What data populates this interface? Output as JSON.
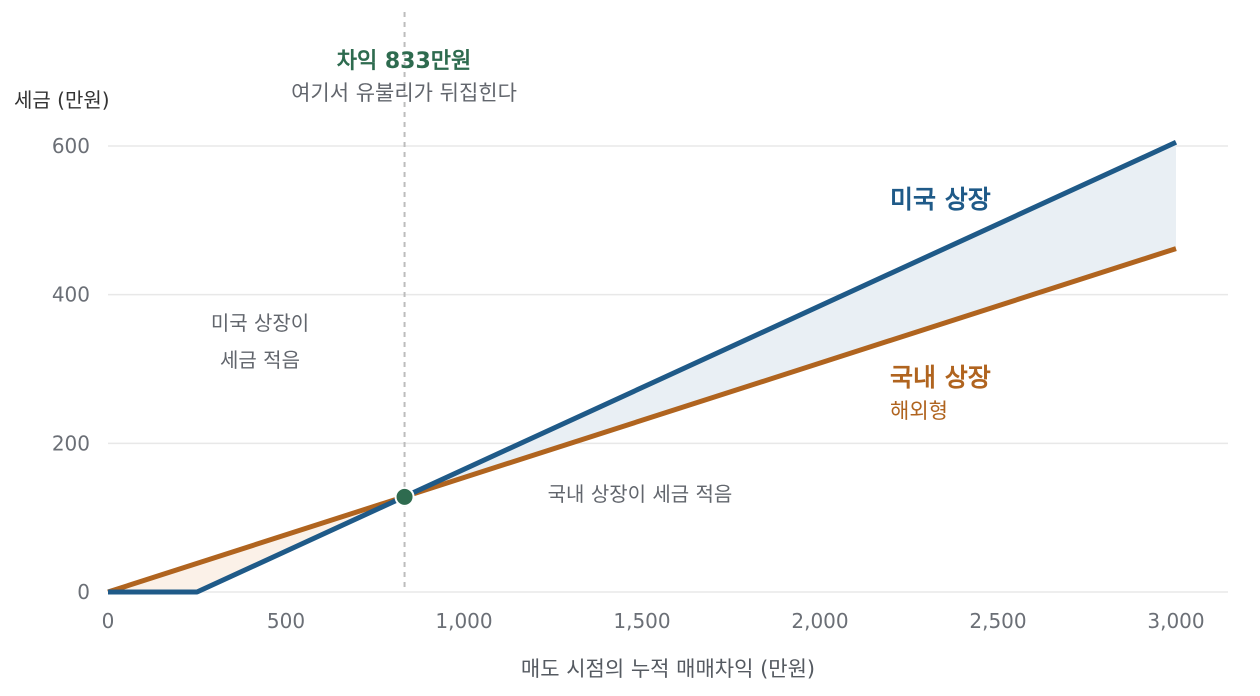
{
  "chart_data": {
    "type": "line",
    "x_title": "매도 시점의 누적 매매차익 (만원)",
    "y_title": "세금 (만원)",
    "xlim": [
      0,
      3000
    ],
    "ylim": [
      0,
      600
    ],
    "x_ticks": [
      {
        "value": 0,
        "label": "0"
      },
      {
        "value": 500,
        "label": "500"
      },
      {
        "value": 1000,
        "label": "1,000"
      },
      {
        "value": 1500,
        "label": "1,500"
      },
      {
        "value": 2000,
        "label": "2,000"
      },
      {
        "value": 2500,
        "label": "2,500"
      },
      {
        "value": 3000,
        "label": "3,000"
      }
    ],
    "y_ticks": [
      {
        "value": 0,
        "label": "0"
      },
      {
        "value": 200,
        "label": "200"
      },
      {
        "value": 400,
        "label": "400"
      },
      {
        "value": 600,
        "label": "600"
      }
    ],
    "grid": true,
    "series": [
      {
        "name": "미국 상장",
        "color": "#1f5a88",
        "points": [
          [
            0,
            0
          ],
          [
            250,
            0
          ],
          [
            3000,
            605
          ]
        ]
      },
      {
        "name": "국내 상장",
        "subname": "해외형",
        "color": "#b0641f",
        "points": [
          [
            0,
            0
          ],
          [
            3000,
            462
          ]
        ]
      }
    ],
    "crossover": {
      "x": 833,
      "y": 128,
      "title": "차익 833만원",
      "subtitle": "여기서 유불리가 뒤집힌다",
      "marker_color": "#2e6b4f"
    },
    "region_labels": {
      "left_line1": "미국 상장이",
      "left_line2": "세금 적음",
      "right": "국내 상장이 세금 적음"
    },
    "fills": {
      "left": "#fbf1e8",
      "right": "#e9eff4"
    }
  }
}
